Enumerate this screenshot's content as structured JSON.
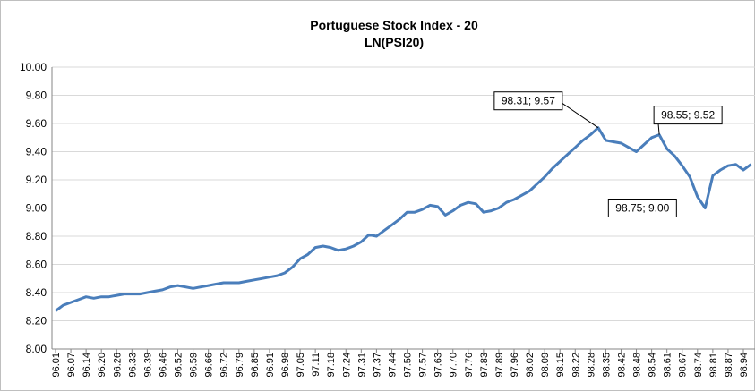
{
  "chart_data": {
    "type": "line",
    "title": "Portuguese Stock Index - 20",
    "subtitle": "LN(PSI20)",
    "categories": [
      "96.01",
      null,
      "96.07",
      null,
      "96.14",
      null,
      "96.20",
      null,
      "96.26",
      null,
      "96.33",
      null,
      "96.39",
      null,
      "96.46",
      null,
      "96.52",
      null,
      "96.59",
      null,
      "96.66",
      null,
      "96.72",
      null,
      "96.79",
      null,
      "96.85",
      null,
      "96.91",
      null,
      "96.98",
      null,
      "97.05",
      null,
      "97.11",
      null,
      "97.18",
      null,
      "97.24",
      null,
      "97.31",
      null,
      "97.37",
      null,
      "97.44",
      null,
      "97.50",
      null,
      "97.57",
      null,
      "97.63",
      null,
      "97.70",
      null,
      "97.76",
      null,
      "97.83",
      null,
      "97.89",
      null,
      "97.96",
      null,
      "98.02",
      null,
      "98.09",
      null,
      "98.15",
      null,
      "98.22",
      null,
      "98.28",
      null,
      "98.35",
      null,
      "98.42",
      null,
      "98.48",
      null,
      "98.54",
      null,
      "98.61",
      null,
      "98.67",
      null,
      "98.74",
      null,
      "98.81",
      null,
      "98.87",
      null,
      "98.94",
      null
    ],
    "series": [
      {
        "name": "LN(PSI20)",
        "color": "#4a7ebb",
        "values": [
          8.27,
          8.31,
          8.33,
          8.35,
          8.37,
          8.36,
          8.37,
          8.37,
          8.38,
          8.39,
          8.39,
          8.39,
          8.4,
          8.41,
          8.42,
          8.44,
          8.45,
          8.44,
          8.43,
          8.44,
          8.45,
          8.46,
          8.47,
          8.47,
          8.47,
          8.48,
          8.49,
          8.5,
          8.51,
          8.52,
          8.54,
          8.58,
          8.64,
          8.67,
          8.72,
          8.73,
          8.72,
          8.7,
          8.71,
          8.73,
          8.76,
          8.81,
          8.8,
          8.84,
          8.88,
          8.92,
          8.97,
          8.97,
          8.99,
          9.02,
          9.01,
          8.95,
          8.98,
          9.02,
          9.04,
          9.03,
          8.97,
          8.98,
          9.0,
          9.04,
          9.06,
          9.09,
          9.12,
          9.17,
          9.22,
          9.28,
          9.33,
          9.38,
          9.43,
          9.48,
          9.52,
          9.57,
          9.48,
          9.47,
          9.46,
          9.43,
          9.4,
          9.45,
          9.5,
          9.52,
          9.42,
          9.37,
          9.3,
          9.22,
          9.08,
          9.0,
          9.23,
          9.27,
          9.3,
          9.31,
          9.27,
          9.31
        ]
      }
    ],
    "ylim": [
      8.0,
      10.0
    ],
    "yticks": [
      {
        "value": 8.0,
        "label": "8.00"
      },
      {
        "value": 8.2,
        "label": "8.20"
      },
      {
        "value": 8.4,
        "label": "8.40"
      },
      {
        "value": 8.6,
        "label": "8.60"
      },
      {
        "value": 8.8,
        "label": "8.80"
      },
      {
        "value": 9.0,
        "label": "9.00"
      },
      {
        "value": 9.2,
        "label": "9.20"
      },
      {
        "value": 9.4,
        "label": "9.40"
      },
      {
        "value": 9.6,
        "label": "9.60"
      },
      {
        "value": 9.8,
        "label": "9.80"
      },
      {
        "value": 10.0,
        "label": "10.00"
      }
    ],
    "grid": true,
    "annotations": [
      {
        "x": 98.31,
        "y": 9.57,
        "label": "98.31; 9.57"
      },
      {
        "x": 98.55,
        "y": 9.52,
        "label": "98.55; 9.52"
      },
      {
        "x": 98.75,
        "y": 9.0,
        "label": "98.75; 9.00"
      }
    ]
  }
}
